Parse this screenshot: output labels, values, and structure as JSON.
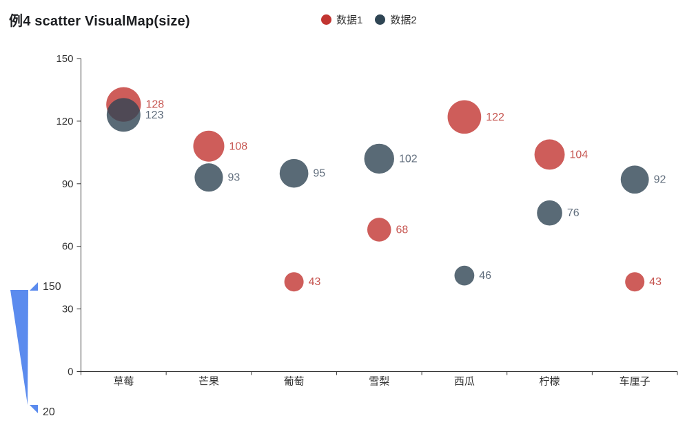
{
  "title": "例4 scatter VisualMap(size)",
  "legend": {
    "items": [
      {
        "label": "数据1",
        "color": "#c23531"
      },
      {
        "label": "数据2",
        "color": "#2f4554"
      }
    ]
  },
  "chart_data": {
    "type": "scatter",
    "title": "例4 scatter VisualMap(size)",
    "categories": [
      "草莓",
      "芒果",
      "葡萄",
      "雪梨",
      "西瓜",
      "柠檬",
      "车厘子"
    ],
    "series": [
      {
        "name": "数据1",
        "color": "#c23531",
        "fill": "rgba(194,53,49,0.8)",
        "label_color": "#c65550",
        "values": [
          128,
          108,
          43,
          68,
          122,
          104,
          43
        ]
      },
      {
        "name": "数据2",
        "color": "#2f4554",
        "fill": "rgba(47,69,84,0.8)",
        "label_color": "#616e7d",
        "values": [
          123,
          93,
          95,
          102,
          46,
          76,
          92
        ]
      }
    ],
    "xlabel": "",
    "ylabel": "",
    "ylim": [
      0,
      150
    ],
    "yticks": [
      0,
      30,
      60,
      90,
      120,
      150
    ],
    "grid": false,
    "legend_position": "top",
    "axis_color": "#333333",
    "visual_map": {
      "min": 20,
      "max": 150,
      "min_label": "20",
      "max_label": "150",
      "color": "#5b8bee",
      "size_range": [
        11,
        28
      ],
      "position": "bottom-left"
    }
  }
}
